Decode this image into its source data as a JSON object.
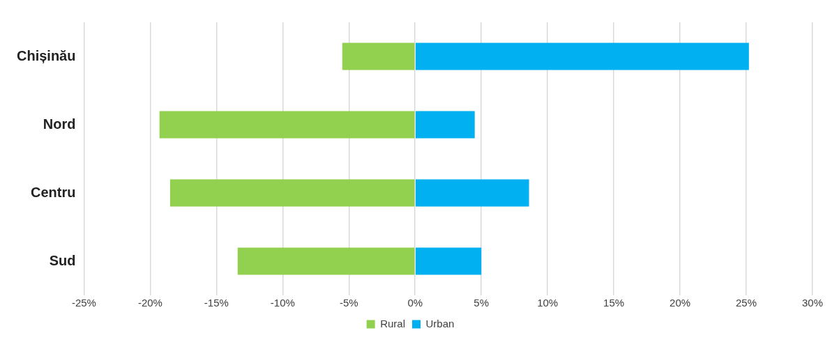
{
  "chart_data": {
    "type": "bar",
    "orientation": "horizontal",
    "stacked": true,
    "categories": [
      "Chișinău",
      "Nord",
      "Centru",
      "Sud"
    ],
    "series": [
      {
        "name": "Rural",
        "color": "#92d050",
        "values": [
          -5.5,
          -19.3,
          -18.5,
          -13.4
        ]
      },
      {
        "name": "Urban",
        "color": "#00b0f0",
        "values": [
          25.2,
          4.5,
          8.6,
          5.0
        ]
      }
    ],
    "xlim": [
      -25,
      30
    ],
    "xticks": [
      {
        "value": -25,
        "label": "-25%"
      },
      {
        "value": -20,
        "label": "-20%"
      },
      {
        "value": -15,
        "label": "-15%"
      },
      {
        "value": -10,
        "label": "-10%"
      },
      {
        "value": -5,
        "label": "-5%"
      },
      {
        "value": 0,
        "label": "0%"
      },
      {
        "value": 5,
        "label": "5%"
      },
      {
        "value": 10,
        "label": "10%"
      },
      {
        "value": 15,
        "label": "15%"
      },
      {
        "value": 20,
        "label": "20%"
      },
      {
        "value": 25,
        "label": "25%"
      },
      {
        "value": 30,
        "label": "30%"
      }
    ],
    "grid": "x",
    "legend": "bottom"
  }
}
